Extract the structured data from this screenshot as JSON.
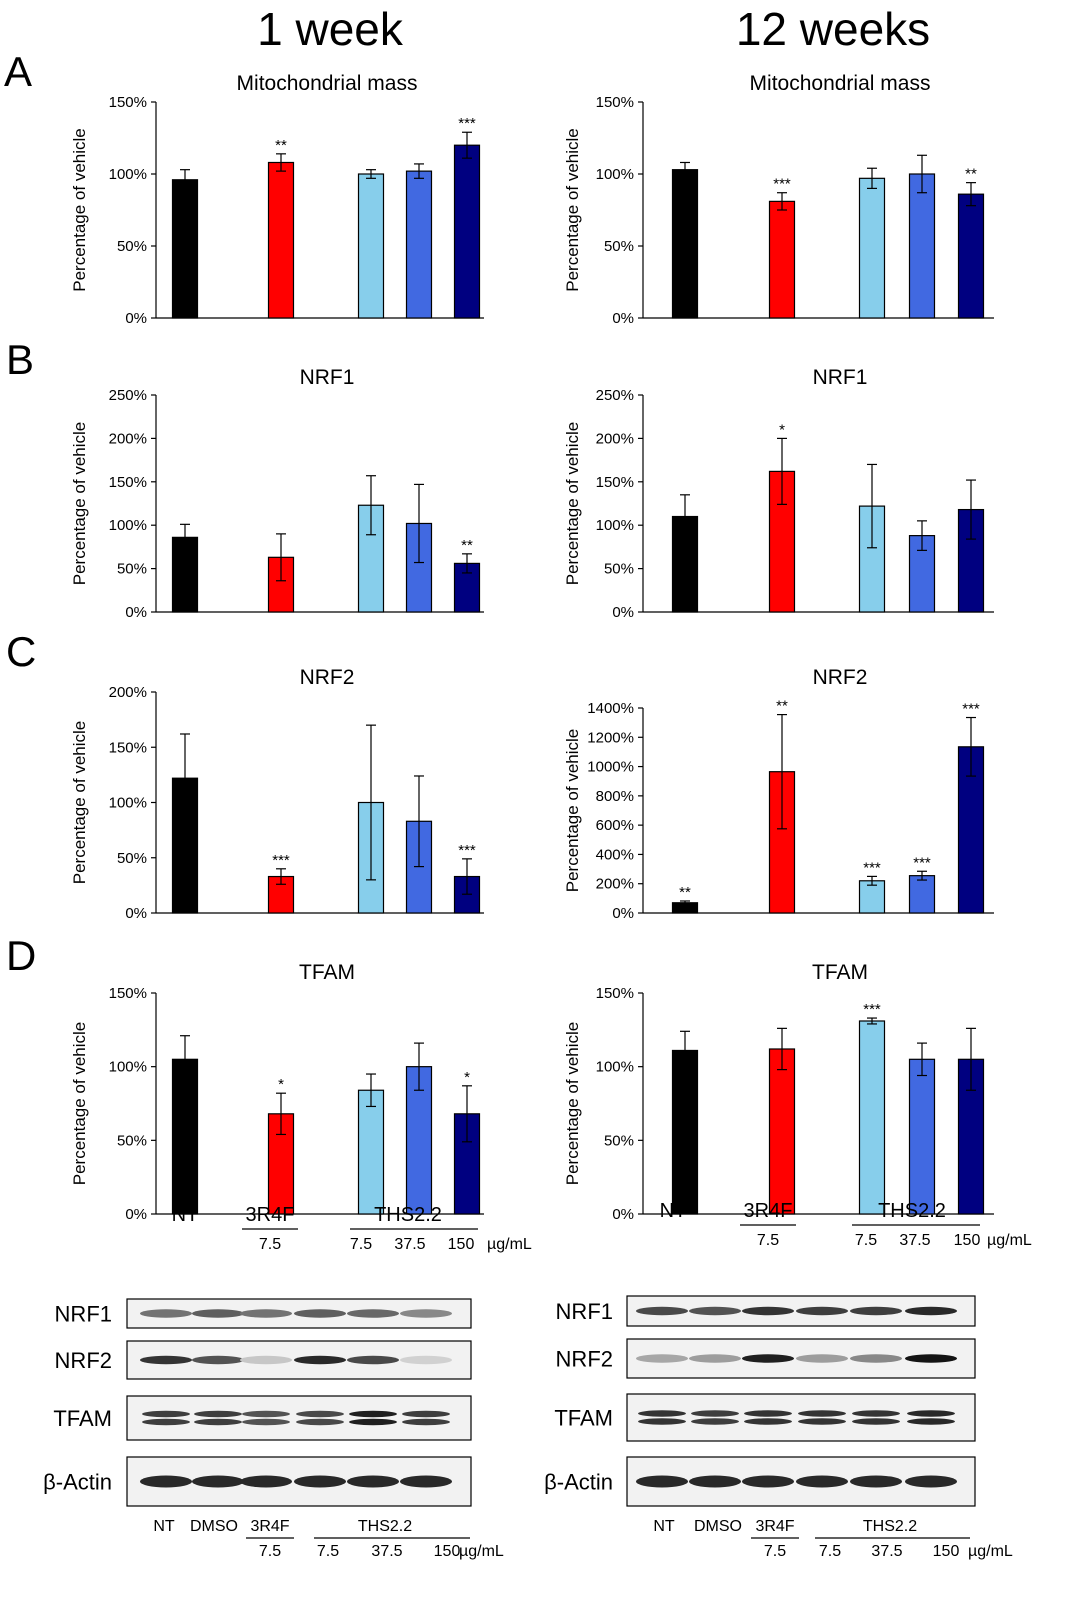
{
  "columns": [
    "1 week",
    "12 weeks"
  ],
  "ylabel": "Percentage of vehicle",
  "colors": {
    "NT": "#000000",
    "3R4F": "#ff0000",
    "THS_7.5": "#87ceeb",
    "THS_37.5": "#4169e1",
    "THS_150": "#000080",
    "axis": "#000000"
  },
  "x_axis": {
    "nt": "NT",
    "r3": "3R4F",
    "r3_dose": "7.5",
    "ths": "THS2.2",
    "ths_doses": [
      "7.5",
      "37.5",
      "150"
    ],
    "unit": "µg/mL"
  },
  "chart_data": [
    {
      "panel": "A",
      "column": "1 week",
      "type": "bar",
      "title": "Mitochondrial mass",
      "categories": [
        "NT",
        "3R4F 7.5",
        "THS2.2 7.5",
        "THS2.2 37.5",
        "THS2.2 150"
      ],
      "values": [
        96,
        108,
        100,
        102,
        120
      ],
      "errors": [
        7,
        6,
        3,
        5,
        9
      ],
      "significance": [
        "",
        "**",
        "",
        "",
        "***"
      ],
      "yticks": [
        "0%",
        "50%",
        "100%",
        "150%"
      ],
      "ylim": [
        0,
        150
      ]
    },
    {
      "panel": "A",
      "column": "12 weeks",
      "type": "bar",
      "title": "Mitochondrial mass",
      "categories": [
        "NT",
        "3R4F 7.5",
        "THS2.2 7.5",
        "THS2.2 37.5",
        "THS2.2 150"
      ],
      "values": [
        103,
        81,
        97,
        100,
        86
      ],
      "errors": [
        5,
        6,
        7,
        13,
        8
      ],
      "significance": [
        "",
        "***",
        "",
        "",
        "**"
      ],
      "yticks": [
        "0%",
        "50%",
        "100%",
        "150%"
      ],
      "ylim": [
        0,
        150
      ]
    },
    {
      "panel": "B",
      "column": "1 week",
      "type": "bar",
      "title": "NRF1",
      "categories": [
        "NT",
        "3R4F 7.5",
        "THS2.2 7.5",
        "THS2.2 37.5",
        "THS2.2 150"
      ],
      "values": [
        86,
        63,
        123,
        102,
        56
      ],
      "errors": [
        15,
        27,
        34,
        45,
        11
      ],
      "significance": [
        "",
        "",
        "",
        "",
        "**"
      ],
      "yticks": [
        "0%",
        "50%",
        "100%",
        "150%",
        "200%",
        "250%"
      ],
      "ylim": [
        0,
        250
      ]
    },
    {
      "panel": "B",
      "column": "12 weeks",
      "type": "bar",
      "title": "NRF1",
      "categories": [
        "NT",
        "3R4F 7.5",
        "THS2.2 7.5",
        "THS2.2 37.5",
        "THS2.2 150"
      ],
      "values": [
        110,
        162,
        122,
        88,
        118
      ],
      "errors": [
        25,
        38,
        48,
        17,
        34
      ],
      "significance": [
        "",
        "*",
        "",
        "",
        ""
      ],
      "yticks": [
        "0%",
        "50%",
        "100%",
        "150%",
        "200%",
        "250%"
      ],
      "ylim": [
        0,
        250
      ]
    },
    {
      "panel": "C",
      "column": "1 week",
      "type": "bar",
      "title": "NRF2",
      "categories": [
        "NT",
        "3R4F 7.5",
        "THS2.2 7.5",
        "THS2.2 37.5",
        "THS2.2 150"
      ],
      "values": [
        122,
        33,
        100,
        83,
        33
      ],
      "errors": [
        40,
        7,
        70,
        41,
        16
      ],
      "significance": [
        "",
        "***",
        "",
        "",
        "***"
      ],
      "yticks": [
        "0%",
        "50%",
        "100%",
        "150%",
        "200%"
      ],
      "ylim": [
        0,
        200
      ]
    },
    {
      "panel": "C",
      "column": "12 weeks",
      "type": "bar",
      "title": "NRF2",
      "categories": [
        "NT",
        "3R4F 7.5",
        "THS2.2 7.5",
        "THS2.2 37.5",
        "THS2.2 150"
      ],
      "values": [
        70,
        965,
        220,
        255,
        1135
      ],
      "errors": [
        12,
        390,
        30,
        30,
        200
      ],
      "significance": [
        "**",
        "**",
        "***",
        "***",
        "***"
      ],
      "yticks": [
        "0%",
        "200%",
        "400%",
        "600%",
        "800%",
        "1000%",
        "1200%",
        "1400%"
      ],
      "ylim": [
        0,
        1400
      ]
    },
    {
      "panel": "D",
      "column": "1 week",
      "type": "bar",
      "title": "TFAM",
      "categories": [
        "NT",
        "3R4F 7.5",
        "THS2.2 7.5",
        "THS2.2 37.5",
        "THS2.2 150"
      ],
      "values": [
        105,
        68,
        84,
        100,
        68
      ],
      "errors": [
        16,
        14,
        11,
        16,
        19
      ],
      "significance": [
        "",
        "*",
        "",
        "",
        "*"
      ],
      "yticks": [
        "0%",
        "50%",
        "100%",
        "150%"
      ],
      "ylim": [
        0,
        150
      ]
    },
    {
      "panel": "D",
      "column": "12 weeks",
      "type": "bar",
      "title": "TFAM",
      "categories": [
        "NT",
        "3R4F 7.5",
        "THS2.2 7.5",
        "THS2.2 37.5",
        "THS2.2 150"
      ],
      "values": [
        111,
        112,
        131,
        105,
        105
      ],
      "errors": [
        13,
        14,
        2,
        11,
        21
      ],
      "significance": [
        "",
        "",
        "***",
        "",
        ""
      ],
      "yticks": [
        "0%",
        "50%",
        "100%",
        "150%"
      ],
      "ylim": [
        0,
        150
      ]
    }
  ],
  "blots": {
    "rows": [
      "NRF1",
      "NRF2",
      "TFAM",
      "β-Actin"
    ],
    "lanes": {
      "nt": "NT",
      "dmso": "DMSO",
      "r3": "3R4F",
      "r3_dose": "7.5",
      "ths": "THS2.2",
      "ths_doses": [
        "7.5",
        "37.5",
        "150"
      ],
      "unit": "µg/mL"
    },
    "intensity": {
      "left": {
        "NRF1": [
          0.55,
          0.65,
          0.55,
          0.65,
          0.6,
          0.45
        ],
        "NRF2": [
          0.85,
          0.7,
          0.15,
          0.9,
          0.75,
          0.1
        ],
        "TFAM": [
          0.8,
          0.8,
          0.7,
          0.75,
          0.95,
          0.8
        ],
        "β-Actin": [
          0.9,
          0.9,
          0.9,
          0.9,
          0.9,
          0.9
        ]
      },
      "right": {
        "NRF1": [
          0.75,
          0.7,
          0.85,
          0.8,
          0.8,
          0.9
        ],
        "NRF2": [
          0.3,
          0.35,
          0.95,
          0.35,
          0.45,
          1.0
        ],
        "TFAM": [
          0.85,
          0.8,
          0.85,
          0.85,
          0.85,
          0.9
        ],
        "β-Actin": [
          0.9,
          0.9,
          0.9,
          0.9,
          0.9,
          0.9
        ]
      }
    }
  }
}
